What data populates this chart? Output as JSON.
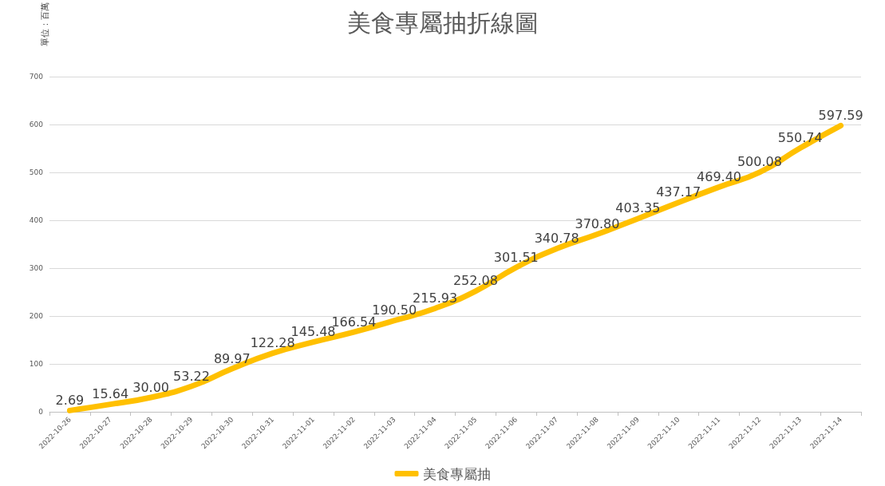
{
  "chart_data": {
    "type": "line",
    "title": "美食專屬抽折線圖",
    "ylabel": "單位：百萬",
    "categories": [
      "2022-10-26",
      "2022-10-27",
      "2022-10-28",
      "2022-10-29",
      "2022-10-30",
      "2022-10-31",
      "2022-11-01",
      "2022-11-02",
      "2022-11-03",
      "2022-11-04",
      "2022-11-05",
      "2022-11-06",
      "2022-11-07",
      "2022-11-08",
      "2022-11-09",
      "2022-11-10",
      "2022-11-11",
      "2022-11-12",
      "2022-11-13",
      "2022-11-14"
    ],
    "series": [
      {
        "name": "美食專屬抽",
        "color": "#ffc000",
        "values": [
          2.69,
          15.64,
          30.0,
          53.22,
          89.97,
          122.28,
          145.48,
          166.54,
          190.5,
          215.93,
          252.08,
          301.51,
          340.78,
          370.8,
          403.35,
          437.17,
          469.4,
          500.08,
          550.74,
          597.59
        ],
        "value_labels": [
          "2.69",
          "15.64",
          "30.00",
          "53.22",
          "89.97",
          "122.28",
          "145.48",
          "166.54",
          "190.50",
          "215.93",
          "252.08",
          "301.51",
          "340.78",
          "370.80",
          "403.35",
          "437.17",
          "469.40",
          "500.08",
          "550.74",
          "597.59"
        ]
      }
    ],
    "ylim": [
      0,
      700
    ],
    "yticks": [
      0,
      100,
      200,
      300,
      400,
      500,
      600,
      700
    ],
    "grid": "y",
    "legend": "bottom",
    "marker": "none",
    "line_style": "solid"
  }
}
